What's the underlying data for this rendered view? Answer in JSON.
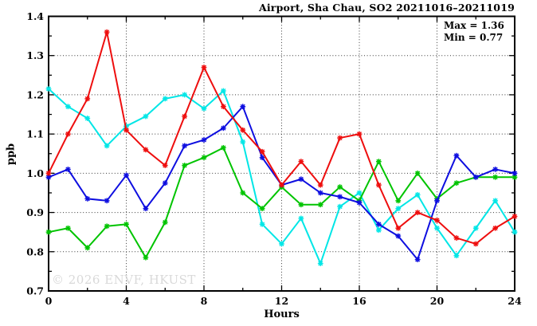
{
  "watermark": "© 2026 ENVF, HKUST",
  "chart_data": {
    "type": "line",
    "title": "Airport, Sha Chau, SO2 20211016–20211019",
    "xlabel": "Hours",
    "ylabel": "ppb",
    "xlim": [
      0,
      24
    ],
    "ylim": [
      0.7,
      1.4
    ],
    "x": [
      0,
      1,
      2,
      3,
      4,
      5,
      6,
      7,
      8,
      9,
      10,
      11,
      12,
      13,
      14,
      15,
      16,
      17,
      18,
      19,
      20,
      21,
      22,
      23,
      24
    ],
    "xticks": {
      "values": [
        0,
        4,
        8,
        12,
        16,
        20,
        24
      ],
      "labels": [
        "0",
        "4",
        "8",
        "12",
        "16",
        "20",
        "24"
      ],
      "minor_step": 2
    },
    "yticks": {
      "values": [
        0.7,
        0.8,
        0.9,
        1.0,
        1.1,
        1.2,
        1.3,
        1.4
      ],
      "labels": [
        "0.7",
        "0.8",
        "0.9",
        "1.0",
        "1.1",
        "1.2",
        "1.3",
        "1.4"
      ],
      "minor_step": 0.05
    },
    "grid": {
      "on": true,
      "x_values": [
        4,
        8,
        12,
        16,
        20
      ],
      "y_values": [
        0.8,
        0.9,
        1.0,
        1.1,
        1.2,
        1.3
      ]
    },
    "legend": "none",
    "marker": "asterisk",
    "annotations": {
      "max": "Max = 1.36",
      "min": "Min = 0.77"
    },
    "stats": {
      "max": 1.36,
      "min": 0.77
    },
    "series": [
      {
        "name": "cyan-series",
        "color": "#00e6e6",
        "values": [
          1.215,
          1.17,
          1.14,
          1.07,
          1.12,
          1.145,
          1.19,
          1.2,
          1.165,
          1.21,
          1.08,
          0.87,
          0.82,
          0.885,
          0.77,
          0.915,
          0.95,
          0.855,
          0.91,
          0.945,
          0.86,
          0.79,
          0.86,
          0.93,
          0.85
        ]
      },
      {
        "name": "green-series",
        "color": "#00c400",
        "values": [
          0.85,
          0.86,
          0.81,
          0.865,
          0.87,
          0.785,
          0.875,
          1.02,
          1.04,
          1.065,
          0.95,
          0.91,
          0.965,
          0.92,
          0.92,
          0.965,
          0.93,
          1.03,
          0.93,
          1.0,
          0.935,
          0.975,
          0.99,
          0.99,
          0.99
        ]
      },
      {
        "name": "blue-series",
        "color": "#0e0ee0",
        "values": [
          0.99,
          1.01,
          0.935,
          0.93,
          0.995,
          0.91,
          0.975,
          1.07,
          1.085,
          1.115,
          1.17,
          1.04,
          0.97,
          0.985,
          0.95,
          0.94,
          0.925,
          0.87,
          0.84,
          0.78,
          0.93,
          1.045,
          0.99,
          1.01,
          1.0
        ]
      },
      {
        "name": "red-series",
        "color": "#ee0e0e",
        "values": [
          1.0,
          1.1,
          1.19,
          1.36,
          1.11,
          1.06,
          1.02,
          1.145,
          1.27,
          1.17,
          1.11,
          1.055,
          0.97,
          1.03,
          0.97,
          1.09,
          1.1,
          0.97,
          0.86,
          0.9,
          0.88,
          0.835,
          0.82,
          0.86,
          0.89
        ]
      }
    ]
  }
}
